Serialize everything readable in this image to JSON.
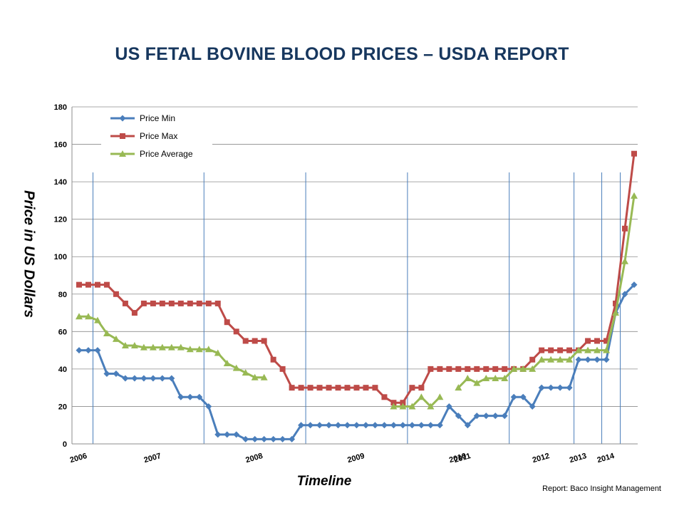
{
  "title": "US FETAL BOVINE BLOOD PRICES – USDA REPORT",
  "credit": "Report: Baco Insight Management",
  "chart_data": {
    "type": "line",
    "xlabel": "Timeline",
    "ylabel": "Price in US Dollars",
    "ylim": [
      0,
      180
    ],
    "yticks": [
      0,
      20,
      40,
      60,
      80,
      100,
      120,
      140,
      160,
      180
    ],
    "grid": "horizontal",
    "legend": "top-left",
    "year_labels": [
      "2006",
      "2007",
      "2008",
      "2009",
      "2010",
      "2011",
      "2012",
      "2013",
      "2014"
    ],
    "year_label_index": [
      0,
      8,
      19,
      30,
      41,
      41.5,
      50,
      54,
      57
    ],
    "year_dividers": [
      1.5,
      13.5,
      24.5,
      35.5,
      46.5,
      53.5,
      56.5,
      58.5
    ],
    "series": [
      {
        "name": "Price Min",
        "color": "#4a7ebb",
        "marker": "diamond",
        "values": [
          50,
          50,
          50,
          37.5,
          37.5,
          35,
          35,
          35,
          35,
          35,
          35,
          25,
          25,
          25,
          20,
          5,
          5,
          5,
          2.5,
          2.5,
          2.5,
          2.5,
          2.5,
          2.5,
          10,
          10,
          10,
          10,
          10,
          10,
          10,
          10,
          10,
          10,
          10,
          10,
          10,
          10,
          10,
          10,
          20,
          15,
          10,
          15,
          15,
          15,
          15,
          25,
          25,
          20,
          30,
          30,
          30,
          30,
          45,
          45,
          45,
          45,
          70,
          80,
          85
        ]
      },
      {
        "name": "Price Max",
        "color": "#be4b48",
        "marker": "square",
        "values": [
          85,
          85,
          85,
          85,
          80,
          75,
          70,
          75,
          75,
          75,
          75,
          75,
          75,
          75,
          75,
          75,
          65,
          60,
          55,
          55,
          55,
          45,
          40,
          30,
          30,
          30,
          30,
          30,
          30,
          30,
          30,
          30,
          30,
          25,
          22,
          22,
          30,
          30,
          40,
          40,
          40,
          40,
          40,
          40,
          40,
          40,
          40,
          40,
          40,
          45,
          50,
          50,
          50,
          50,
          50,
          55,
          55,
          55,
          75,
          115,
          155
        ]
      },
      {
        "name": "Price Average",
        "color": "#98b954",
        "marker": "triangle",
        "values": [
          68,
          68,
          66,
          59,
          56,
          52.5,
          52.5,
          51.5,
          51.5,
          51.5,
          51.5,
          51.5,
          50.5,
          50.5,
          50.5,
          48.5,
          43,
          40.5,
          38,
          35.5,
          35.5,
          null,
          null,
          null,
          null,
          null,
          null,
          null,
          null,
          null,
          null,
          null,
          null,
          null,
          20,
          20,
          20,
          25,
          20,
          25,
          null,
          30,
          35,
          32.5,
          35,
          35,
          35,
          40,
          40,
          40,
          45,
          45,
          45,
          45,
          50,
          50,
          50,
          50,
          70,
          97.5,
          132.5
        ]
      }
    ]
  }
}
